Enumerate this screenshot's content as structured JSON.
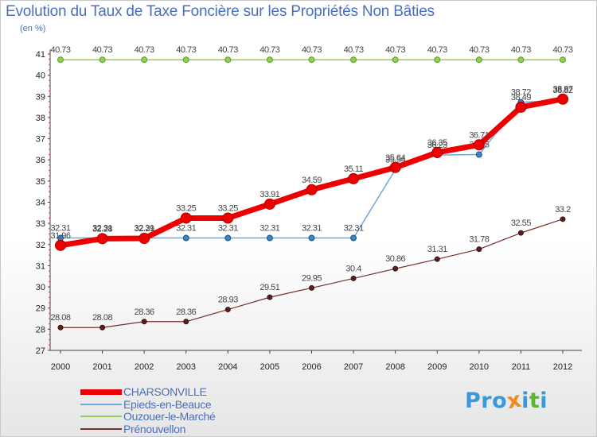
{
  "header": {
    "title": "Evolution du Taux de Taxe Foncière sur les Propriétés Non Bâties",
    "subtitle": "(en %)"
  },
  "brand": {
    "text": "Proxiti",
    "letter_colors": [
      "#3a9ad9",
      "#3a9ad9",
      "#3a9ad9",
      "#f08a1c",
      "#3a9ad9",
      "#5bb632",
      "#3a9ad9"
    ]
  },
  "chart_data": {
    "type": "line",
    "title": "Evolution du Taux de Taxe Foncière sur les Propriétés Non Bâties",
    "ylabel": "(en %)",
    "x": [
      "2000",
      "2001",
      "2002",
      "2003",
      "2004",
      "2005",
      "2006",
      "2007",
      "2008",
      "2009",
      "2010",
      "2011",
      "2012"
    ],
    "ylim": [
      27,
      41
    ],
    "yticks": [
      27,
      28,
      29,
      30,
      31,
      32,
      33,
      34,
      35,
      36,
      37,
      38,
      39,
      40,
      41
    ],
    "grid": false,
    "legend_position": "bottom-left",
    "series": [
      {
        "name": "Ouzouer-le-Marché",
        "color": "#8fd14f",
        "values": [
          40.73,
          40.73,
          40.73,
          40.73,
          40.73,
          40.73,
          40.73,
          40.73,
          40.73,
          40.73,
          40.73,
          40.73,
          40.73
        ],
        "labels": [
          "40.73",
          "40.73",
          "40.73",
          "40.73",
          "40.73",
          "40.73",
          "40.73",
          "40.73",
          "40.73",
          "40.73",
          "40.73",
          "40.73",
          "40.73"
        ]
      },
      {
        "name": "Epieds-en-Beauce",
        "color": "#6fa8dc",
        "values": [
          32.31,
          32.31,
          32.31,
          32.31,
          32.31,
          32.31,
          32.31,
          32.31,
          35.54,
          36.23,
          36.25,
          38.72,
          38.82
        ],
        "labels": [
          "32.31",
          "32.31",
          "32.31",
          "32.31",
          "32.31",
          "32.31",
          "32.31",
          "32.31",
          "35.54",
          "36.23",
          "36.25",
          "38.72",
          "38.82"
        ]
      },
      {
        "name": "Prénouvellon",
        "color": "#7b2d2d",
        "values": [
          28.08,
          28.08,
          28.36,
          28.36,
          28.93,
          29.51,
          29.95,
          30.4,
          30.86,
          31.31,
          31.78,
          32.55,
          33.2
        ],
        "labels": [
          "28.08",
          "28.08",
          "28.36",
          "28.36",
          "28.93",
          "29.51",
          "29.95",
          "30.4",
          "30.86",
          "31.31",
          "31.78",
          "32.55",
          "33.2"
        ]
      },
      {
        "name": "CHARSONVILLE",
        "color": "#ee0000",
        "values": [
          31.96,
          32.28,
          32.29,
          33.25,
          33.25,
          33.91,
          34.59,
          35.11,
          35.64,
          36.35,
          36.71,
          38.49,
          38.87
        ],
        "labels": [
          "31.96",
          "32.28",
          "32.29",
          "33.25",
          "33.25",
          "33.91",
          "34.59",
          "35.11",
          "35.64",
          "36.35",
          "36.71",
          "38.49",
          "38.87"
        ]
      }
    ]
  }
}
